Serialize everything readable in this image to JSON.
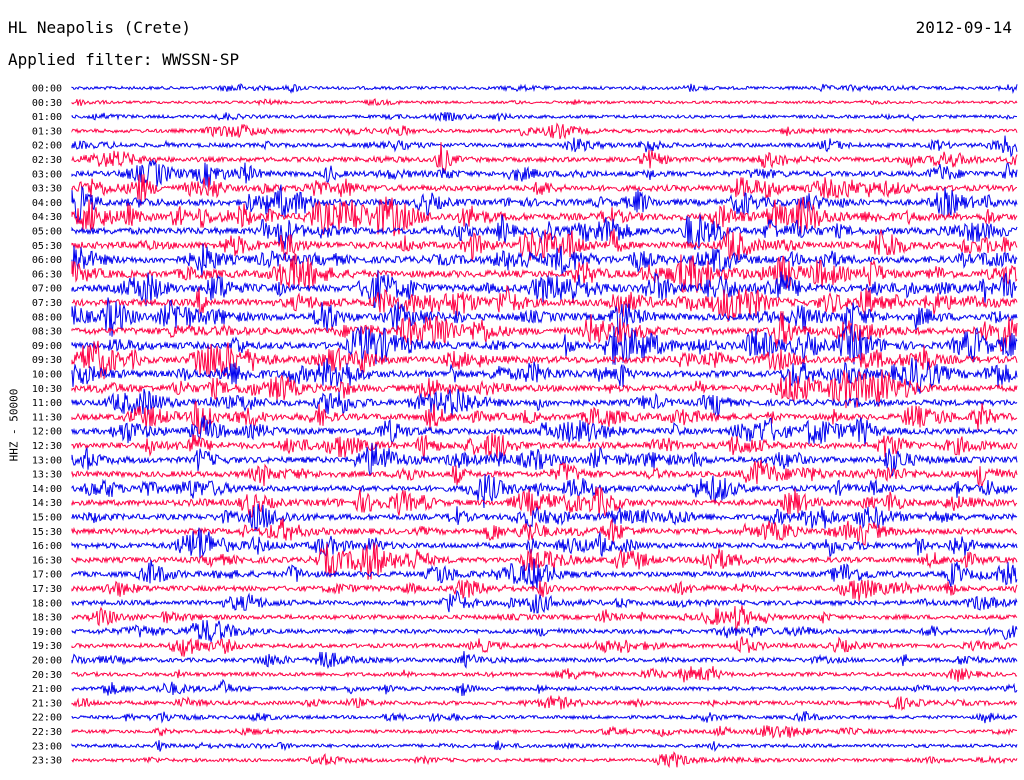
{
  "header": {
    "station": "HL Neapolis (Crete)",
    "date": "2012-09-14",
    "filter": "Applied filter: WWSSN-SP"
  },
  "chart_data": {
    "type": "line",
    "kind": "helicorder",
    "ylabel": "HHZ - 50000",
    "colors": [
      "#0000ee",
      "#ff0044"
    ],
    "row_labels": [
      "00:00",
      "00:30",
      "01:00",
      "01:30",
      "02:00",
      "02:30",
      "03:00",
      "03:30",
      "04:00",
      "04:30",
      "05:00",
      "05:30",
      "06:00",
      "06:30",
      "07:00",
      "07:30",
      "08:00",
      "08:30",
      "09:00",
      "09:30",
      "10:00",
      "10:30",
      "11:00",
      "11:30",
      "12:00",
      "12:30",
      "13:00",
      "13:30",
      "14:00",
      "14:30",
      "15:00",
      "15:30",
      "16:00",
      "16:30",
      "17:00",
      "17:30",
      "18:00",
      "18:30",
      "19:00",
      "19:30",
      "20:00",
      "20:30",
      "21:00",
      "21:30",
      "22:00",
      "22:30",
      "23:00",
      "23:30"
    ],
    "activity_level": [
      0.3,
      0.2,
      0.3,
      0.4,
      0.5,
      0.6,
      0.7,
      0.8,
      0.9,
      1.0,
      1.0,
      1.0,
      1.0,
      1.0,
      1.0,
      1.0,
      1.0,
      1.0,
      1.0,
      1.0,
      0.95,
      0.9,
      0.85,
      0.85,
      0.85,
      0.85,
      0.85,
      0.8,
      0.8,
      0.8,
      0.8,
      0.8,
      0.75,
      0.75,
      0.7,
      0.65,
      0.6,
      0.55,
      0.55,
      0.5,
      0.5,
      0.45,
      0.45,
      0.45,
      0.35,
      0.35,
      0.35,
      0.35
    ],
    "grid": false
  }
}
